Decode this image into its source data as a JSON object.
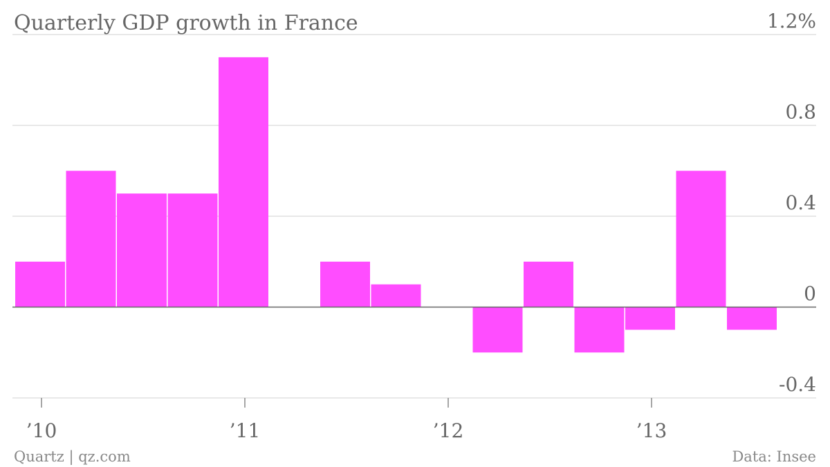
{
  "chart_data": {
    "type": "bar",
    "title": "Quarterly GDP growth in France",
    "x": [
      "2010 Q1",
      "2010 Q2",
      "2010 Q3",
      "2010 Q4",
      "2011 Q1",
      "2011 Q2",
      "2011 Q3",
      "2011 Q4",
      "2012 Q1",
      "2012 Q2",
      "2012 Q3",
      "2012 Q4",
      "2013 Q1",
      "2013 Q2",
      "2013 Q3"
    ],
    "values": [
      0.2,
      0.6,
      0.5,
      0.5,
      1.1,
      0.0,
      0.2,
      0.1,
      0.0,
      -0.2,
      0.2,
      -0.2,
      -0.1,
      0.6,
      -0.1
    ],
    "ylim": [
      -0.4,
      1.2
    ],
    "y_ticks": [
      {
        "value": 1.2,
        "label": "1.2%"
      },
      {
        "value": 0.8,
        "label": "0.8"
      },
      {
        "value": 0.4,
        "label": "0.4"
      },
      {
        "value": 0,
        "label": "0"
      },
      {
        "value": -0.4,
        "label": "-0.4"
      }
    ],
    "x_ticks": [
      {
        "at": "2010 Q1",
        "label": "’10"
      },
      {
        "at": "2011 Q1",
        "label": "’11"
      },
      {
        "at": "2012 Q1",
        "label": "’12"
      },
      {
        "at": "2013 Q1",
        "label": "’13"
      }
    ],
    "grid": true,
    "bar_color": "#ff4dff",
    "gridline_color": "#e0e0e0",
    "axis_color": "#666666",
    "source": "Data: Insee",
    "credit": "Quartz | qz.com"
  }
}
